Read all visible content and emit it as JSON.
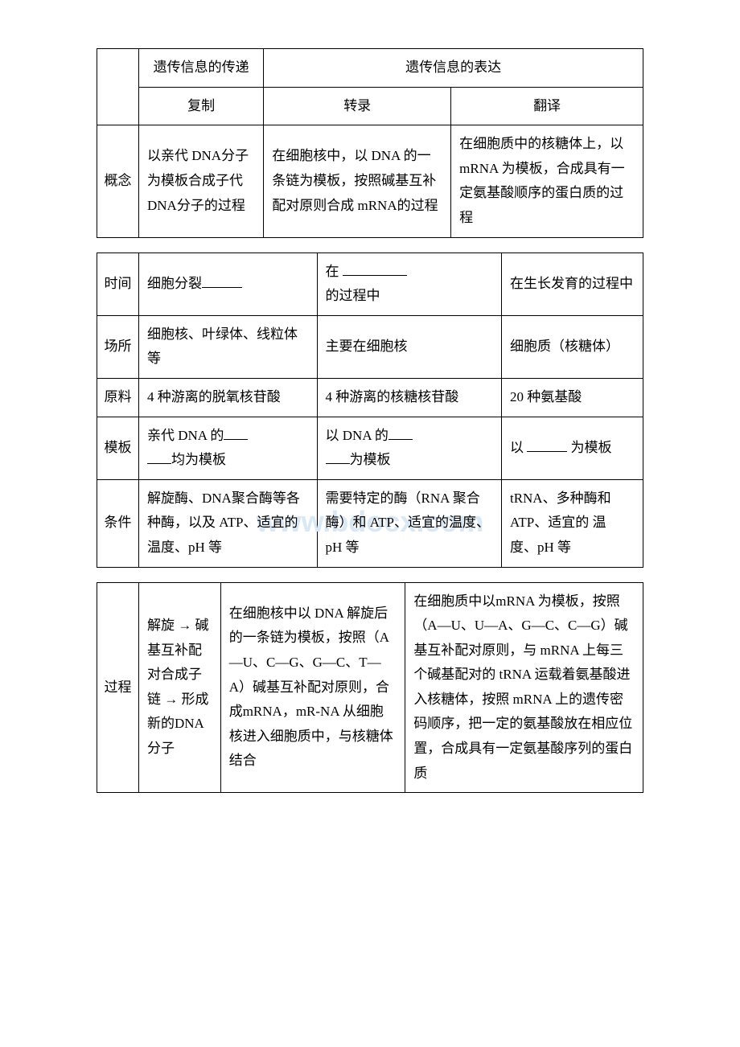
{
  "t1": {
    "header1": "遗传信息的传递",
    "header2": "遗传信息的表达",
    "sub1": "复制",
    "sub2": "转录",
    "sub3": "翻译",
    "rowlabel": "概念",
    "c1": "以亲代 DNA分子为模板合成子代 DNA分子的过程",
    "c2": "在细胞核中，以 DNA 的一条链为模板，按照碱基互补配对原则合成 mRNA的过程",
    "c3": "在细胞质中的核糖体上，以mRNA 为模板，合成具有一定氨基酸顺序的蛋白质的过程"
  },
  "t2": {
    "r1": {
      "label": "时间",
      "a": "细胞分裂",
      "b_pre": "在",
      "b_post": "的过程中",
      "c": "在生长发育的过程中"
    },
    "r2": {
      "label": "场所",
      "a": "细胞核、叶绿体、线粒体等",
      "b": "主要在细胞核",
      "c": "细胞质（核糖体）"
    },
    "r3": {
      "label": "原料",
      "a": "4 种游离的脱氧核苷酸",
      "b": "4 种游离的核糖核苷酸",
      "c": "20 种氨基酸"
    },
    "r4": {
      "label": "模板",
      "a_pre": "亲代 DNA 的",
      "a_post": "均为模板",
      "b_pre": "以 DNA 的",
      "b_post": "为模板",
      "c_pre": "以",
      "c_post": "为模板"
    },
    "r5": {
      "label": "条件",
      "a": "解旋酶、DNA聚合酶等各种酶，以及 ATP、适宜的温度、pH 等",
      "b": "需要特定的酶（RNA 聚合酶）和 ATP、适宜的温度、pH 等",
      "c": "tRNA、多种酶和 ATP、适宜的 温 度、pH 等"
    }
  },
  "t3": {
    "label": "过程",
    "a": "解旋 → 碱基互补配对合成子链 → 形成新的DNA 分子",
    "b": "在细胞核中以 DNA 解旋后的一条链为模板，按照（A—U、C—G、G—C、T—A）碱基互补配对原则，合成mRNA，mR-NA 从细胞核进入细胞质中，与核糖体结合",
    "c": "在细胞质中以mRNA 为模板，按照（A—U、U—A、G—C、C—G）碱基互补配对原则，与 mRNA 上每三个碱基配对的 tRNA 运载着氨基酸进入核糖体，按照 mRNA 上的遗传密码顺序，把一定的氨基酸放在相应位置，合成具有一定氨基酸序列的蛋白质"
  },
  "watermark": {
    "text": "www.bdocx.com",
    "color": "#d9e8f5"
  }
}
